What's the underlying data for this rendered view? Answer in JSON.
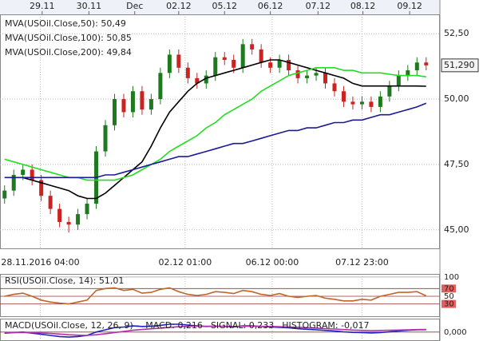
{
  "chart_data": [
    {
      "type": "candlestick",
      "x2ticks": [
        {
          "value": 4.1,
          "label": "29.11"
        },
        {
          "value": 9.2,
          "label": "30.11"
        },
        {
          "value": 14.2,
          "label": "Dec"
        },
        {
          "value": 19,
          "label": "02.12"
        },
        {
          "value": 24,
          "label": "05.12"
        },
        {
          "value": 29,
          "label": "06.12"
        },
        {
          "value": 34.2,
          "label": "07.12"
        },
        {
          "value": 39.1,
          "label": "08.12"
        },
        {
          "value": 44.2,
          "label": "09.12"
        }
      ],
      "xticks": [
        {
          "value": 3.9,
          "label": "28.11.2016 04:00"
        },
        {
          "value": 19.7,
          "label": "02.12 01:00"
        },
        {
          "value": 29.2,
          "label": "06.12 00:00"
        },
        {
          "value": 39,
          "label": "07.12 23:00"
        }
      ],
      "xlim": [
        -0.5,
        47.5
      ],
      "ylim": [
        44.26,
        53.24
      ],
      "yticks": [
        {
          "value": 52.5,
          "label": "52,50"
        },
        {
          "value": 50,
          "label": "50,00"
        },
        {
          "value": 47.5,
          "label": "47,50"
        },
        {
          "value": 45,
          "label": "45,00"
        }
      ],
      "up_color": "#1f7a1f",
      "down_color": "#cc2222",
      "open": [
        46.2,
        46.5,
        47.1,
        47.3,
        46.9,
        46.3,
        45.8,
        45.3,
        45.2,
        45.6,
        46.0,
        48.0,
        49.0,
        50.0,
        49.5,
        50.3,
        49.6,
        50.0,
        51.0,
        51.7,
        51.2,
        50.8,
        50.6,
        50.9,
        51.6,
        51.5,
        51.2,
        52.1,
        51.9,
        51.4,
        51.2,
        51.5,
        51.1,
        50.8,
        50.9,
        51.0,
        50.6,
        50.3,
        49.9,
        49.8,
        49.9,
        49.7,
        50.1,
        50.5,
        50.9,
        51.1,
        51.4
      ],
      "high": [
        46.7,
        47.3,
        47.5,
        47.5,
        47.1,
        46.5,
        46.0,
        45.5,
        45.8,
        46.2,
        48.2,
        49.2,
        50.2,
        50.2,
        50.5,
        50.5,
        50.2,
        51.2,
        51.9,
        51.9,
        51.4,
        51.0,
        51.1,
        51.8,
        51.8,
        51.7,
        52.3,
        52.3,
        52.1,
        51.6,
        51.7,
        51.7,
        51.3,
        51.1,
        51.2,
        51.2,
        50.8,
        50.5,
        50.1,
        50.1,
        50.1,
        50.3,
        50.7,
        51.1,
        51.3,
        51.6,
        51.6
      ],
      "low": [
        46.0,
        46.3,
        46.9,
        46.7,
        46.1,
        45.6,
        45.1,
        44.9,
        45.0,
        45.4,
        45.8,
        47.8,
        48.8,
        49.3,
        49.3,
        49.4,
        49.4,
        49.8,
        50.8,
        51.0,
        50.6,
        50.4,
        50.4,
        50.7,
        51.3,
        51.0,
        51.0,
        51.7,
        51.2,
        51.0,
        51.0,
        50.9,
        50.6,
        50.6,
        50.7,
        50.4,
        50.1,
        49.7,
        49.6,
        49.6,
        49.5,
        49.5,
        49.9,
        50.3,
        50.7,
        50.9,
        51.1
      ],
      "close": [
        46.5,
        47.1,
        47.3,
        46.9,
        46.3,
        45.8,
        45.3,
        45.2,
        45.6,
        46.0,
        48.0,
        49.0,
        50.0,
        49.5,
        50.3,
        49.6,
        50.0,
        51.0,
        51.7,
        51.2,
        50.8,
        50.6,
        50.9,
        51.6,
        51.5,
        51.2,
        52.1,
        51.9,
        51.4,
        51.2,
        51.5,
        51.1,
        50.8,
        50.9,
        51.0,
        50.6,
        50.3,
        49.9,
        49.8,
        49.9,
        49.7,
        50.1,
        50.5,
        50.9,
        51.1,
        51.4,
        51.29
      ],
      "last_price": {
        "value": 51.29,
        "label": "51,290"
      },
      "series": [
        {
          "name": "MVA(USOil.Close,50): 50,49",
          "color": "#000000",
          "values": [
            null,
            null,
            47.0,
            46.9,
            46.8,
            46.7,
            46.6,
            46.5,
            46.3,
            46.2,
            46.2,
            46.4,
            46.7,
            47.0,
            47.3,
            47.6,
            48.2,
            48.9,
            49.5,
            49.9,
            50.3,
            50.6,
            50.8,
            50.9,
            51.0,
            51.1,
            51.2,
            51.3,
            51.4,
            51.5,
            51.5,
            51.4,
            51.3,
            51.2,
            51.1,
            51.0,
            50.9,
            50.8,
            50.6,
            50.5,
            50.5,
            50.5,
            50.5,
            50.5,
            50.5,
            50.5,
            50.49
          ]
        },
        {
          "name": "MVA(USOil.Close,100): 50,85",
          "color": "#22dd22",
          "values": [
            47.7,
            47.6,
            47.5,
            47.4,
            47.3,
            47.2,
            47.1,
            47.0,
            47.0,
            46.9,
            46.9,
            46.9,
            46.9,
            47.0,
            47.1,
            47.3,
            47.5,
            47.7,
            48.0,
            48.2,
            48.4,
            48.6,
            48.9,
            49.1,
            49.4,
            49.6,
            49.8,
            50.0,
            50.3,
            50.5,
            50.7,
            50.9,
            51.0,
            51.1,
            51.2,
            51.2,
            51.2,
            51.1,
            51.1,
            51.0,
            51.0,
            51.0,
            50.95,
            50.9,
            50.9,
            50.9,
            50.85
          ]
        },
        {
          "name": "MVA(USOil.Close,200): 49,84",
          "color": "#1a1a99",
          "values": [
            47.0,
            47.0,
            47.0,
            47.0,
            47.0,
            47.0,
            47.0,
            47.0,
            47.0,
            47.0,
            47.0,
            47.1,
            47.1,
            47.2,
            47.3,
            47.4,
            47.5,
            47.6,
            47.7,
            47.8,
            47.8,
            47.9,
            48.0,
            48.1,
            48.2,
            48.3,
            48.3,
            48.4,
            48.5,
            48.6,
            48.7,
            48.8,
            48.8,
            48.9,
            48.9,
            49.0,
            49.1,
            49.1,
            49.2,
            49.2,
            49.3,
            49.4,
            49.4,
            49.5,
            49.6,
            49.7,
            49.84
          ]
        }
      ]
    },
    {
      "type": "line",
      "ylim": [
        -4,
        108
      ],
      "yticks": [
        100,
        70,
        50,
        30
      ],
      "series": [
        {
          "name": "RSI(USOil.Close, 14): 51,01",
          "color": "#c0652a",
          "values": [
            50,
            55,
            58,
            50,
            40,
            35,
            32,
            30,
            35,
            40,
            65,
            70,
            72,
            65,
            68,
            58,
            60,
            68,
            72,
            62,
            55,
            52,
            55,
            62,
            60,
            57,
            65,
            62,
            55,
            52,
            57,
            50,
            47,
            50,
            52,
            45,
            42,
            38,
            38,
            42,
            40,
            50,
            55,
            60,
            60,
            62,
            51.01
          ]
        }
      ]
    },
    {
      "type": "line",
      "title": "MACD(USOil.Close, 12, 26, 9) -",
      "histogram_label": "HISTOGRAM: -0,017",
      "ylim": [
        -0.8,
        1.2
      ],
      "yticks": [
        {
          "value": 0,
          "label": "0,000"
        }
      ],
      "series": [
        {
          "name": "MACD: 0,216",
          "color": "#2020c0",
          "values": [
            -0.1,
            -0.05,
            0,
            -0.1,
            -0.2,
            -0.3,
            -0.4,
            -0.45,
            -0.4,
            -0.3,
            0,
            0.2,
            0.4,
            0.45,
            0.55,
            0.5,
            0.52,
            0.6,
            0.7,
            0.7,
            0.62,
            0.55,
            0.5,
            0.52,
            0.5,
            0.45,
            0.55,
            0.55,
            0.5,
            0.45,
            0.42,
            0.38,
            0.3,
            0.25,
            0.2,
            0.15,
            0.1,
            0.02,
            -0.03,
            -0.05,
            -0.08,
            -0.05,
            0.02,
            0.1,
            0.16,
            0.2,
            0.216
          ]
        },
        {
          "name": "SIGNAL: 0,233",
          "color": "#b030b0",
          "values": [
            -0.05,
            -0.05,
            -0.04,
            -0.05,
            -0.08,
            -0.12,
            -0.18,
            -0.24,
            -0.28,
            -0.3,
            -0.24,
            -0.15,
            -0.04,
            0.06,
            0.16,
            0.23,
            0.29,
            0.35,
            0.42,
            0.48,
            0.51,
            0.52,
            0.52,
            0.52,
            0.51,
            0.5,
            0.51,
            0.52,
            0.51,
            0.5,
            0.48,
            0.46,
            0.43,
            0.39,
            0.35,
            0.31,
            0.27,
            0.22,
            0.18,
            0.15,
            0.13,
            0.14,
            0.16,
            0.18,
            0.2,
            0.22,
            0.233
          ]
        }
      ]
    }
  ]
}
